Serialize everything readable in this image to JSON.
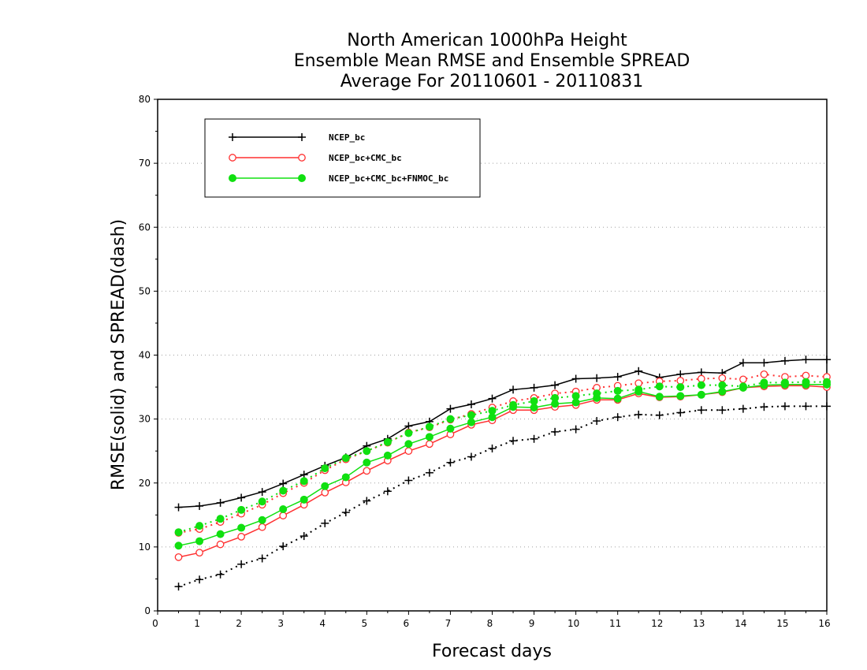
{
  "chart_data": {
    "type": "line",
    "title": [
      "North American 1000hPa Height",
      "Ensemble Mean RMSE and Ensemble SPREAD",
      "Average For 20110601 - 20110831"
    ],
    "xlabel": "Forecast days",
    "ylabel": "RMSE(solid) and SPREAD(dash)",
    "xlim": [
      0,
      16
    ],
    "ylim": [
      0,
      80
    ],
    "xticks": [
      "0",
      "1",
      "2",
      "3",
      "4",
      "5",
      "6",
      "7",
      "8",
      "9",
      "10",
      "11",
      "12",
      "13",
      "14",
      "15",
      "16"
    ],
    "yticks": [
      "0",
      "10",
      "20",
      "30",
      "40",
      "50",
      "60",
      "70",
      "80"
    ],
    "grid": "horizontal dotted",
    "legend_position": "top-left",
    "x": [
      0.5,
      1,
      1.5,
      2,
      2.5,
      3,
      3.5,
      4,
      4.5,
      5,
      5.5,
      6,
      6.5,
      7,
      7.5,
      8,
      8.5,
      9,
      9.5,
      10,
      10.5,
      11,
      11.5,
      12,
      12.5,
      13,
      13.5,
      14,
      14.5,
      15,
      15.5,
      16
    ],
    "series": [
      {
        "name": "NCEP_bc",
        "color": "#000000",
        "marker": "plus",
        "rmse": [
          16.2,
          16.4,
          16.9,
          17.7,
          18.6,
          19.9,
          21.3,
          22.7,
          24.0,
          25.8,
          26.9,
          28.9,
          29.6,
          31.6,
          32.3,
          33.2,
          34.6,
          34.9,
          35.3,
          36.3,
          36.4,
          36.6,
          37.5,
          36.5,
          37.0,
          37.3,
          37.2,
          38.8,
          38.8,
          39.1,
          39.3,
          39.3
        ],
        "spread": [
          3.8,
          4.9,
          5.7,
          7.3,
          8.2,
          10.1,
          11.7,
          13.7,
          15.4,
          17.2,
          18.7,
          20.4,
          21.6,
          23.2,
          24.1,
          25.4,
          26.6,
          26.9,
          28.0,
          28.4,
          29.7,
          30.3,
          30.7,
          30.6,
          31.0,
          31.4,
          31.4,
          31.6,
          31.9,
          32.0,
          32.0,
          32.0
        ]
      },
      {
        "name": "NCEP_bc+CMC_bc",
        "color": "#ff3030",
        "marker": "open-circle",
        "rmse": [
          8.4,
          9.1,
          10.4,
          11.6,
          13.1,
          14.9,
          16.6,
          18.5,
          20.1,
          21.9,
          23.5,
          25.0,
          26.1,
          27.6,
          29.1,
          29.8,
          31.4,
          31.4,
          31.9,
          32.2,
          33.0,
          33.0,
          34.0,
          33.4,
          33.5,
          33.8,
          34.2,
          34.9,
          35.1,
          35.2,
          35.2,
          35.0
        ],
        "spread": [
          12.2,
          12.8,
          13.9,
          15.2,
          16.6,
          18.4,
          20.0,
          22.0,
          23.7,
          25.0,
          26.3,
          27.9,
          28.7,
          29.9,
          30.8,
          31.8,
          32.8,
          33.3,
          34.0,
          34.3,
          34.9,
          35.2,
          35.6,
          35.9,
          36.0,
          36.3,
          36.4,
          36.2,
          37.0,
          36.6,
          36.8,
          36.6
        ]
      },
      {
        "name": "NCEP_bc+CMC_bc+FNMOC_bc",
        "color": "#10e010",
        "marker": "filled-circle",
        "rmse": [
          10.2,
          10.9,
          12.0,
          13.0,
          14.2,
          15.9,
          17.4,
          19.5,
          20.9,
          23.2,
          24.3,
          26.1,
          27.2,
          28.5,
          29.5,
          30.3,
          31.9,
          31.8,
          32.4,
          32.6,
          33.3,
          33.2,
          34.3,
          33.5,
          33.6,
          33.8,
          34.3,
          34.9,
          35.3,
          35.4,
          35.4,
          35.4
        ],
        "spread": [
          12.3,
          13.3,
          14.4,
          15.8,
          17.1,
          18.8,
          20.3,
          22.3,
          23.9,
          25.0,
          26.4,
          27.8,
          28.8,
          30.0,
          30.6,
          31.3,
          32.2,
          32.8,
          33.3,
          33.6,
          34.0,
          34.4,
          34.6,
          35.1,
          35.0,
          35.3,
          35.3,
          35.1,
          35.7,
          35.7,
          35.8,
          35.8
        ]
      }
    ]
  }
}
